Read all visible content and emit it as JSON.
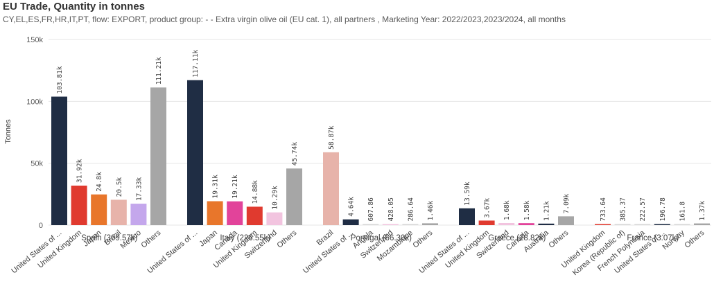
{
  "title": "EU Trade, Quantity in tonnes",
  "subtitle": "CY,EL,ES,FR,HR,IT,PT, flow: EXPORT, product group: - - Extra virgin olive oil (EU cat. 1), all partners , Marketing Year: 2022/2023,2023/2024, all months",
  "chart_data": {
    "type": "bar",
    "title": "EU Trade, Quantity in tonnes",
    "ylabel": "Tonnes",
    "ylim": [
      0,
      150000
    ],
    "yticks": [
      0,
      50000,
      100000,
      150000
    ],
    "ytick_labels": [
      "0",
      "50k",
      "100k",
      "150k"
    ],
    "grid": true,
    "groups": [
      {
        "label": "Spain (309.57k)",
        "bars": [
          {
            "category": "United States of ...",
            "value": 103810,
            "label": "103.81k",
            "color": "#1f2d44"
          },
          {
            "category": "United Kingdom",
            "value": 31920,
            "label": "31.92k",
            "color": "#e03a2f"
          },
          {
            "category": "Japan",
            "value": 24800,
            "label": "24.8k",
            "color": "#e8762b"
          },
          {
            "category": "Brazil",
            "value": 20500,
            "label": "20.5k",
            "color": "#e7b3aa"
          },
          {
            "category": "Mexico",
            "value": 17330,
            "label": "17.33k",
            "color": "#c4a7ec"
          },
          {
            "category": "Others",
            "value": 111210,
            "label": "111.21k",
            "color": "#a6a6a6"
          }
        ]
      },
      {
        "label": "Italy (226.55k)",
        "bars": [
          {
            "category": "United States of ...",
            "value": 117110,
            "label": "117.11k",
            "color": "#1f2d44"
          },
          {
            "category": "Japan",
            "value": 19310,
            "label": "19.31k",
            "color": "#e8762b"
          },
          {
            "category": "Canada",
            "value": 19210,
            "label": "19.21k",
            "color": "#e2439a"
          },
          {
            "category": "United Kingdom",
            "value": 14880,
            "label": "14.88k",
            "color": "#e03a2f"
          },
          {
            "category": "Switzerland",
            "value": 10290,
            "label": "10.29k",
            "color": "#f2c4df"
          },
          {
            "category": "Others",
            "value": 45740,
            "label": "45.74k",
            "color": "#a6a6a6"
          }
        ]
      },
      {
        "label": "Portugal (66.30k)",
        "bars": [
          {
            "category": "Brazil",
            "value": 58870,
            "label": "58.87k",
            "color": "#e7b3aa"
          },
          {
            "category": "United States of ...",
            "value": 4640,
            "label": "4.64k",
            "color": "#1f2d44"
          },
          {
            "category": "Angola",
            "value": 607.86,
            "label": "607.86",
            "color": "#d6d6d6"
          },
          {
            "category": "Switzerland",
            "value": 428.05,
            "label": "428.05",
            "color": "#f2c4df"
          },
          {
            "category": "Mozambique",
            "value": 286.64,
            "label": "286.64",
            "color": "#d6d6d6"
          },
          {
            "category": "Others",
            "value": 1460,
            "label": "1.46k",
            "color": "#a6a6a6"
          }
        ]
      },
      {
        "label": "Greece (28.82k)",
        "bars": [
          {
            "category": "United States of ...",
            "value": 13590,
            "label": "13.59k",
            "color": "#1f2d44"
          },
          {
            "category": "United Kingdom",
            "value": 3670,
            "label": "3.67k",
            "color": "#e03a2f"
          },
          {
            "category": "Switzerland",
            "value": 1680,
            "label": "1.68k",
            "color": "#f2c4df"
          },
          {
            "category": "Canada",
            "value": 1580,
            "label": "1.58k",
            "color": "#e2439a"
          },
          {
            "category": "Australia",
            "value": 1210,
            "label": "1.21k",
            "color": "#1f2d44"
          },
          {
            "category": "Others",
            "value": 7090,
            "label": "7.09k",
            "color": "#a6a6a6"
          }
        ]
      },
      {
        "label": "France (3.07k)",
        "bars": [
          {
            "category": "United Kingdom",
            "value": 733.64,
            "label": "733.64",
            "color": "#e03a2f"
          },
          {
            "category": "Korea (Republic of)",
            "value": 385.37,
            "label": "385.37",
            "color": "#d6d6d6"
          },
          {
            "category": "French Polynesia",
            "value": 222.57,
            "label": "222.57",
            "color": "#d6d6d6"
          },
          {
            "category": "United States of ...",
            "value": 196.78,
            "label": "196.78",
            "color": "#1f2d44"
          },
          {
            "category": "Norway",
            "value": 161.8,
            "label": "161.8",
            "color": "#d6d6d6"
          },
          {
            "category": "Others",
            "value": 1370,
            "label": "1.37k",
            "color": "#a6a6a6"
          }
        ]
      }
    ]
  }
}
